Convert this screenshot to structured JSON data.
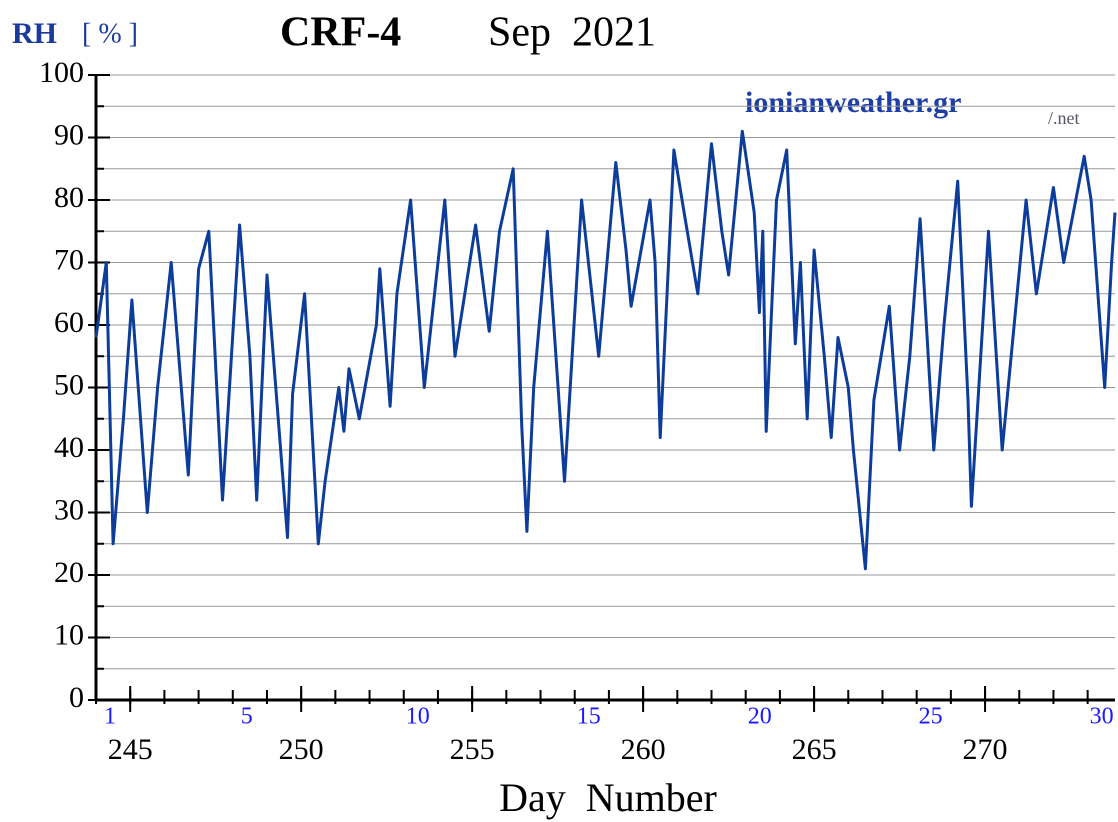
{
  "chart_data": {
    "type": "line",
    "title": "CRF-4",
    "subtitle": "Sep  2021",
    "y_label": "RH",
    "y_unit": "[ % ]",
    "x_label": "Day  Number",
    "watermark": "ionianweather.gr",
    "watermark_suffix": "/.net",
    "xlim": [
      244,
      273.8
    ],
    "ylim": [
      0,
      100
    ],
    "xticks": [
      245,
      250,
      255,
      260,
      265,
      270
    ],
    "xminor": [
      244,
      245,
      246,
      247,
      248,
      249,
      250,
      251,
      252,
      253,
      254,
      255,
      256,
      257,
      258,
      259,
      260,
      261,
      262,
      263,
      264,
      265,
      266,
      267,
      268,
      269,
      270,
      271,
      272,
      273
    ],
    "yticks": [
      0,
      10,
      20,
      30,
      40,
      50,
      60,
      70,
      80,
      90,
      100
    ],
    "ygrid": [
      5,
      10,
      15,
      20,
      25,
      30,
      35,
      40,
      45,
      50,
      55,
      60,
      65,
      70,
      75,
      80,
      85,
      90,
      95,
      100
    ],
    "day_labels": [
      {
        "x": 244,
        "label": "1"
      },
      {
        "x": 248,
        "label": "5"
      },
      {
        "x": 253,
        "label": "10"
      },
      {
        "x": 258,
        "label": "15"
      },
      {
        "x": 263,
        "label": "20"
      },
      {
        "x": 268,
        "label": "25"
      },
      {
        "x": 273,
        "label": "30"
      }
    ],
    "grid": true,
    "series": [
      {
        "name": "RH",
        "color": "#0d3d9a",
        "x": [
          244.0,
          244.3,
          244.5,
          244.8,
          245.05,
          245.5,
          245.8,
          246.2,
          246.7,
          247.0,
          247.3,
          247.7,
          248.2,
          248.5,
          248.7,
          249.0,
          249.6,
          249.75,
          250.1,
          250.5,
          250.7,
          251.1,
          251.25,
          251.4,
          251.7,
          252.2,
          252.3,
          252.6,
          252.8,
          253.2,
          253.6,
          254.2,
          254.5,
          255.1,
          255.5,
          255.8,
          256.2,
          256.45,
          256.6,
          256.8,
          257.2,
          257.7,
          258.2,
          258.7,
          259.2,
          259.5,
          259.65,
          260.2,
          260.35,
          260.5,
          260.9,
          261.2,
          261.6,
          262.0,
          262.3,
          262.5,
          262.9,
          263.25,
          263.4,
          263.5,
          263.6,
          263.9,
          264.2,
          264.45,
          264.6,
          264.8,
          265.0,
          265.3,
          265.5,
          265.7,
          266.0,
          266.15,
          266.5,
          266.75,
          267.2,
          267.5,
          267.8,
          268.1,
          268.5,
          268.8,
          269.2,
          269.5,
          269.6,
          270.1,
          270.5,
          271.2,
          271.5,
          272.0,
          272.3,
          272.9,
          273.1,
          273.5,
          273.7,
          273.8
        ],
        "values": [
          58,
          70,
          25,
          45,
          64,
          30,
          50,
          70,
          36,
          69,
          75,
          32,
          76,
          55,
          32,
          68,
          26,
          49,
          65,
          25,
          35,
          50,
          43,
          53,
          45,
          60,
          69,
          47,
          65,
          80,
          50,
          80,
          55,
          76,
          59,
          75,
          85,
          44,
          27,
          50,
          75,
          35,
          80,
          55,
          86,
          72,
          63,
          80,
          70,
          42,
          88,
          78,
          65,
          89,
          75,
          68,
          91,
          78,
          62,
          75,
          43,
          80,
          88,
          57,
          70,
          45,
          72,
          55,
          42,
          58,
          50,
          40,
          21,
          48,
          63,
          40,
          55,
          77,
          40,
          60,
          83,
          48,
          31,
          75,
          40,
          80,
          65,
          82,
          70,
          87,
          80,
          50,
          70,
          78
        ]
      }
    ]
  }
}
